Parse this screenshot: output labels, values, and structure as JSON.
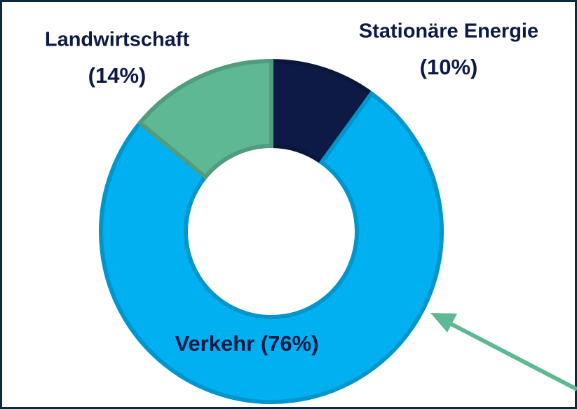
{
  "chart_data": {
    "type": "donut",
    "categories": [
      "Stationäre Energie",
      "Verkehr",
      "Landwirtschaft"
    ],
    "values": [
      10,
      76,
      14
    ],
    "value_labels": [
      "(10%)",
      "(76%)",
      "(14%)"
    ],
    "colors": [
      "#0d1a45",
      "#00b0f0",
      "#5fb894"
    ]
  }
}
